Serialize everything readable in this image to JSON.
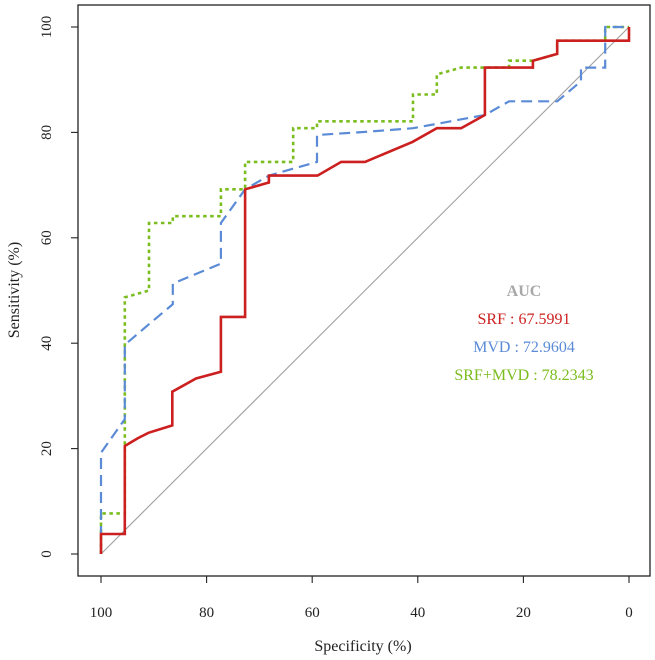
{
  "chart_data": {
    "type": "line",
    "title": "",
    "xlabel": "Specificity (%)",
    "ylabel": "Sensitivity (%)",
    "xlim": [
      100,
      0
    ],
    "ylim": [
      0,
      100
    ],
    "xticks": [
      100,
      80,
      60,
      40,
      20,
      0
    ],
    "yticks": [
      0,
      20,
      40,
      60,
      80,
      100
    ],
    "grid": false,
    "reference_line": {
      "from": [
        100,
        0
      ],
      "to": [
        0,
        100
      ],
      "color": "#a0a0a0"
    },
    "legend": {
      "position": "center-right",
      "title": "AUC",
      "title_color": "#a8a8a8",
      "entries": [
        {
          "label": "SRF : 67.5991",
          "color": "#cc1f1f"
        },
        {
          "label": "MVD : 72.9604",
          "color": "#5b8bd6"
        },
        {
          "label": "SRF+MVD : 78.2343",
          "color": "#7bbd1e"
        }
      ]
    },
    "series": [
      {
        "name": "SRF",
        "color": "#cc1f1f",
        "dash": "solid",
        "points": [
          [
            100,
            0
          ],
          [
            100,
            3.8
          ],
          [
            95.5,
            3.8
          ],
          [
            95.5,
            20.5
          ],
          [
            93,
            22
          ],
          [
            91,
            23
          ],
          [
            86.5,
            24.4
          ],
          [
            86.5,
            30.8
          ],
          [
            82,
            33.3
          ],
          [
            77.3,
            34.6
          ],
          [
            77.3,
            45
          ],
          [
            72.7,
            45
          ],
          [
            72.7,
            69.2
          ],
          [
            68.2,
            70.5
          ],
          [
            68.2,
            71.8
          ],
          [
            59,
            71.8
          ],
          [
            54.5,
            74.4
          ],
          [
            50,
            74.4
          ],
          [
            41,
            78.2
          ],
          [
            36.4,
            80.8
          ],
          [
            31.8,
            80.8
          ],
          [
            27.3,
            83.3
          ],
          [
            27.3,
            92.3
          ],
          [
            18.2,
            92.3
          ],
          [
            18.2,
            93.6
          ],
          [
            13.6,
            94.9
          ],
          [
            13.6,
            97.4
          ],
          [
            0,
            97.4
          ],
          [
            0,
            100
          ]
        ]
      },
      {
        "name": "MVD",
        "color": "#5b8bd6",
        "dash": "longdash",
        "points": [
          [
            100,
            0
          ],
          [
            100,
            19.2
          ],
          [
            95.5,
            25.6
          ],
          [
            95.5,
            39.7
          ],
          [
            90.9,
            43.6
          ],
          [
            86.4,
            47.4
          ],
          [
            86.4,
            51.3
          ],
          [
            77.3,
            55.1
          ],
          [
            77.3,
            62.8
          ],
          [
            72.7,
            69.2
          ],
          [
            68.2,
            71.8
          ],
          [
            59.1,
            74.4
          ],
          [
            59.1,
            79.5
          ],
          [
            50,
            80.1
          ],
          [
            40.9,
            80.8
          ],
          [
            27.3,
            83.3
          ],
          [
            22.7,
            85.9
          ],
          [
            13.6,
            85.9
          ],
          [
            9.1,
            89.7
          ],
          [
            9.1,
            92.3
          ],
          [
            4.5,
            92.3
          ],
          [
            4.5,
            100
          ],
          [
            0,
            100
          ]
        ]
      },
      {
        "name": "SRF+MVD",
        "color": "#7bbd1e",
        "dash": "dotted",
        "points": [
          [
            100,
            0
          ],
          [
            100,
            7.7
          ],
          [
            95.5,
            7.7
          ],
          [
            95.5,
            48.7
          ],
          [
            90.9,
            50
          ],
          [
            90.9,
            62.8
          ],
          [
            86.4,
            62.8
          ],
          [
            86.4,
            64.1
          ],
          [
            77.3,
            64.1
          ],
          [
            77.3,
            69.2
          ],
          [
            72.7,
            69.2
          ],
          [
            72.7,
            74.4
          ],
          [
            63.6,
            74.4
          ],
          [
            63.6,
            80.8
          ],
          [
            59.1,
            80.8
          ],
          [
            59.1,
            82.1
          ],
          [
            40.9,
            82.1
          ],
          [
            40.9,
            87.2
          ],
          [
            36.4,
            87.2
          ],
          [
            36.4,
            91
          ],
          [
            31.8,
            92.3
          ],
          [
            22.7,
            92.3
          ],
          [
            22.7,
            93.6
          ],
          [
            18.2,
            93.6
          ],
          [
            13.6,
            94.9
          ],
          [
            13.6,
            97.4
          ],
          [
            4.5,
            97.4
          ],
          [
            4.5,
            100
          ],
          [
            0,
            100
          ]
        ]
      }
    ]
  }
}
